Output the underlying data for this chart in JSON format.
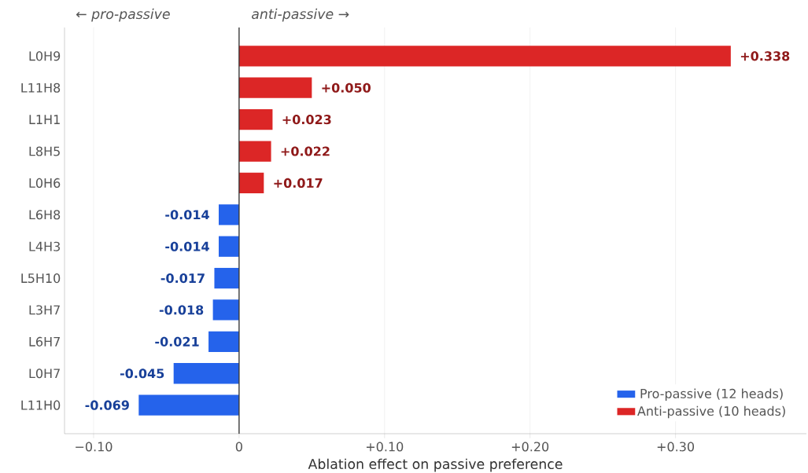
{
  "chart_data": {
    "type": "bar",
    "orientation": "horizontal",
    "xlabel": "Ablation effect on passive preference",
    "categories": [
      "L0H9",
      "L11H8",
      "L1H1",
      "L8H5",
      "L0H6",
      "L6H8",
      "L4H3",
      "L5H10",
      "L3H7",
      "L6H7",
      "L0H7",
      "L11H0"
    ],
    "series": [
      {
        "name": "Pro-passive (12 heads)",
        "color": "#2563eb",
        "values": [
          null,
          null,
          null,
          null,
          null,
          -0.014,
          -0.014,
          -0.017,
          -0.018,
          -0.021,
          -0.045,
          -0.069
        ],
        "value_labels": [
          null,
          null,
          null,
          null,
          null,
          "-0.014",
          "-0.014",
          "-0.017",
          "-0.018",
          "-0.021",
          "-0.045",
          "-0.069"
        ]
      },
      {
        "name": "Anti-passive (10 heads)",
        "color": "#dc2626",
        "values": [
          0.338,
          0.05,
          0.023,
          0.022,
          0.017,
          null,
          null,
          null,
          null,
          null,
          null,
          null
        ],
        "value_labels": [
          "+0.338",
          "+0.050",
          "+0.023",
          "+0.022",
          "+0.017",
          null,
          null,
          null,
          null,
          null,
          null,
          null
        ]
      }
    ],
    "xlim": [
      -0.12,
      0.39
    ],
    "xticks": [
      {
        "value": -0.1,
        "label": "−0.10"
      },
      0,
      {
        "value": 0.1,
        "label": "+0.10"
      },
      {
        "value": 0.2,
        "label": "+0.20"
      },
      {
        "value": 0.3,
        "label": "+0.30"
      }
    ],
    "ref_lines": [
      {
        "axis": "x",
        "value": 0,
        "color": "#333333"
      }
    ],
    "annotations": [
      "← pro-passive",
      "anti-passive →"
    ],
    "grid": "x",
    "legend": "bottom right"
  }
}
